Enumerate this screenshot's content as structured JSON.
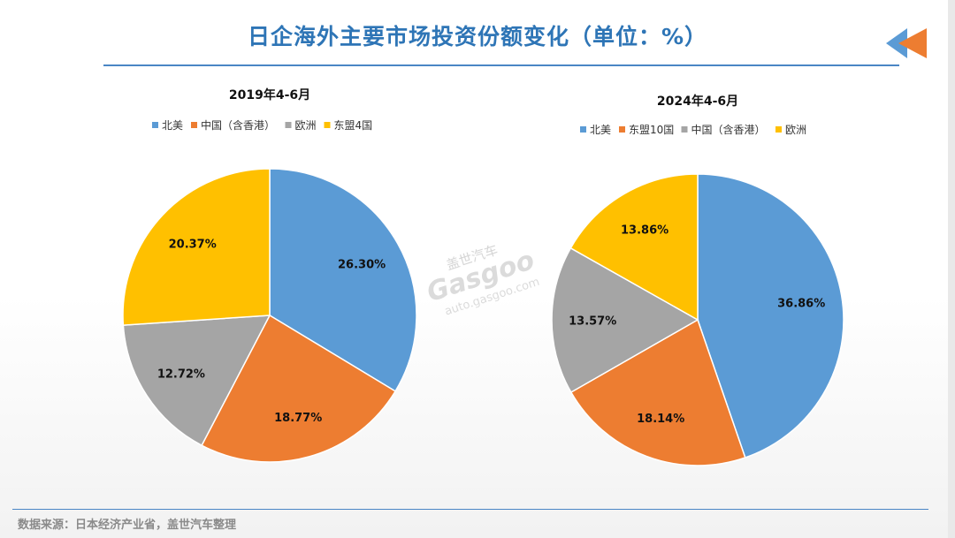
{
  "title": "日企海外主要市场投资份额变化（单位：%）",
  "source": "数据来源：日本经济产业省，盖世汽车整理",
  "watermark": {
    "brand_cn": "盖世汽车",
    "brand_en": "Gasgoo",
    "url": "auto.gasgoo.com"
  },
  "colors": {
    "title": "#2e75b6",
    "blue": "#5b9bd5",
    "orange": "#ed7d31",
    "gray": "#a5a5a5",
    "yellow": "#ffc000",
    "accent_arrow_orange": "#ed7d31",
    "accent_arrow_blue": "#5b9bd5"
  },
  "chart_data": [
    {
      "type": "pie",
      "title": "2019年4-6月",
      "legend_position": "top",
      "slices": [
        {
          "label": "北美",
          "value": 26.3,
          "display": "26.30%",
          "color": "#5b9bd5"
        },
        {
          "label": "中国（含香港）",
          "value": 18.77,
          "display": "18.77%",
          "color": "#ed7d31"
        },
        {
          "label": "欧洲",
          "value": 12.72,
          "display": "12.72%",
          "color": "#a5a5a5"
        },
        {
          "label": "东盟4国",
          "value": 20.37,
          "display": "20.37%",
          "color": "#ffc000"
        }
      ]
    },
    {
      "type": "pie",
      "title": "2024年4-6月",
      "legend_position": "top",
      "slices": [
        {
          "label": "北美",
          "value": 36.86,
          "display": "36.86%",
          "color": "#5b9bd5"
        },
        {
          "label": "东盟10国",
          "value": 18.14,
          "display": "18.14%",
          "color": "#ed7d31"
        },
        {
          "label": "中国（含香港）",
          "value": 13.57,
          "display": "13.57%",
          "color": "#a5a5a5"
        },
        {
          "label": "欧洲",
          "value": 13.86,
          "display": "13.86%",
          "color": "#ffc000"
        }
      ]
    }
  ]
}
